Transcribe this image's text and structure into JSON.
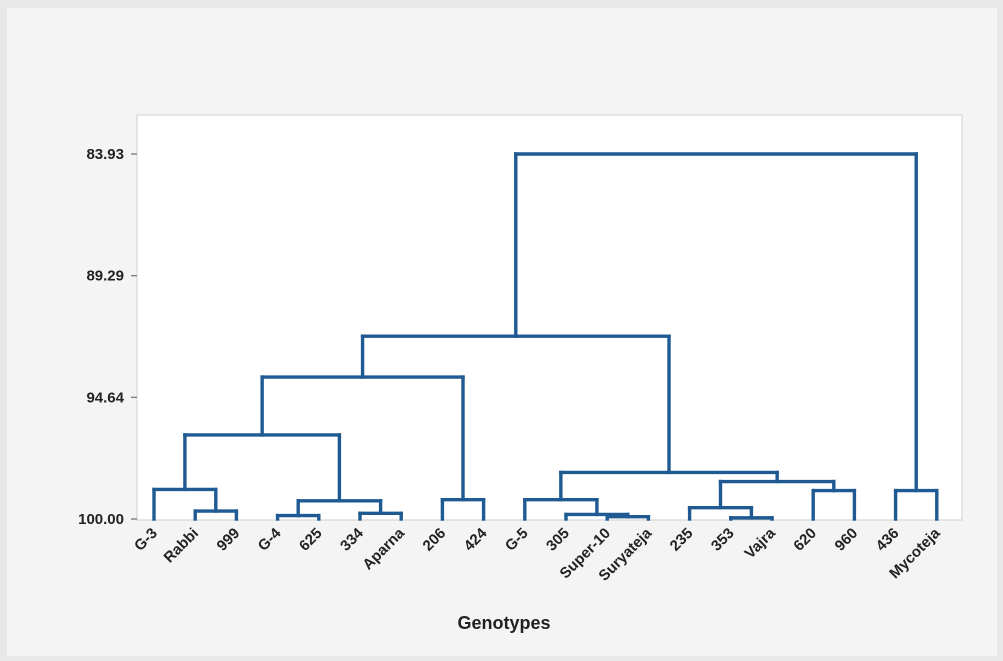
{
  "chart_data": {
    "type": "dendrogram",
    "title": "",
    "xlabel": "Genotypes",
    "ylabel": "",
    "y_ticks": [
      "83.93",
      "89.29",
      "94.64",
      "100.00"
    ],
    "ylim": [
      100.0,
      83.93
    ],
    "leaves": [
      "G-3",
      "Rabbi",
      "999",
      "G-4",
      "625",
      "334",
      "Aparna",
      "206",
      "424",
      "G-5",
      "305",
      "Super-10",
      "Suryateja",
      "235",
      "353",
      "Vajra",
      "620",
      "960",
      "436",
      "Mycoteja"
    ],
    "merges": [
      {
        "a": "Super-10",
        "b": "Suryateja",
        "similarity": 99.9
      },
      {
        "a": "353",
        "b": "Vajra",
        "similarity": 99.95
      },
      {
        "a": "G-4",
        "b": "625",
        "similarity": 99.85
      },
      {
        "a": "334",
        "b": "Aparna",
        "similarity": 99.75
      },
      {
        "a": "Rabbi",
        "b": "999",
        "similarity": 99.65
      },
      {
        "a": "305",
        "b": "Super-10+Suryateja",
        "similarity": 99.8
      },
      {
        "a": "235",
        "b": "353+Vajra",
        "similarity": 99.5
      },
      {
        "a": "G-5",
        "b": "305+Super-10+Suryateja",
        "similarity": 99.15
      },
      {
        "a": "G-4+625",
        "b": "334+Aparna",
        "similarity": 99.2
      },
      {
        "a": "206",
        "b": "424",
        "similarity": 99.15
      },
      {
        "a": "620",
        "b": "960",
        "similarity": 98.75
      },
      {
        "a": "436",
        "b": "Mycoteja",
        "similarity": 98.75
      },
      {
        "a": "G-3",
        "b": "Rabbi+999",
        "similarity": 98.7
      },
      {
        "a": "235+353+Vajra",
        "b": "620+960",
        "similarity": 98.35
      },
      {
        "a": "G-5..Suryateja",
        "b": "235..960",
        "similarity": 97.95
      },
      {
        "a": "G-3..999",
        "b": "G-4..Aparna",
        "similarity": 96.3
      },
      {
        "a": "G-3..Aparna",
        "b": "206+424",
        "similarity": 93.75
      },
      {
        "a": "G-3..424",
        "b": "G-5..960",
        "similarity": 91.95
      },
      {
        "a": "G-3..960",
        "b": "436+Mycoteja",
        "similarity": 83.93
      }
    ],
    "link_color": "#1f5a92"
  }
}
